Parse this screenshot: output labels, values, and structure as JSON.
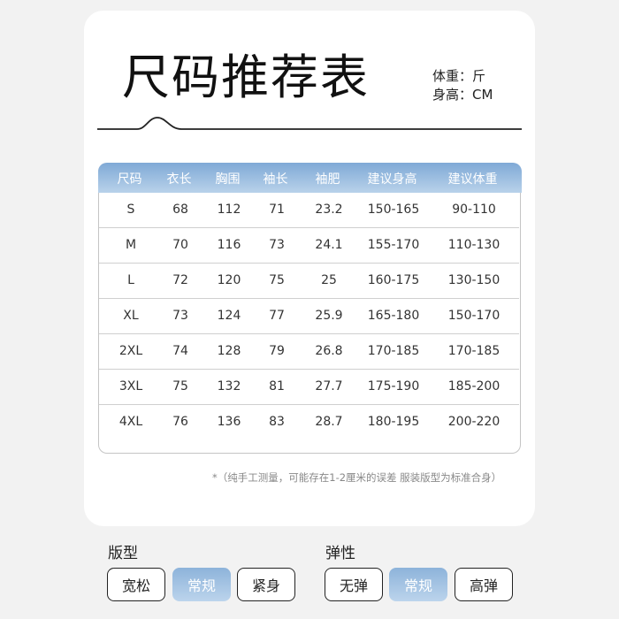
{
  "title": "尺码推荐表",
  "units": {
    "weight": "体重：斤",
    "height": "身高：CM"
  },
  "table": {
    "headers": [
      "尺码",
      "衣长",
      "胸围",
      "袖长",
      "袖肥",
      "建议身高",
      "建议体重"
    ],
    "rows": [
      [
        "S",
        "68",
        "112",
        "71",
        "23.2",
        "150-165",
        "90-110"
      ],
      [
        "M",
        "70",
        "116",
        "73",
        "24.1",
        "155-170",
        "110-130"
      ],
      [
        "L",
        "72",
        "120",
        "75",
        "25",
        "160-175",
        "130-150"
      ],
      [
        "XL",
        "73",
        "124",
        "77",
        "25.9",
        "165-180",
        "150-170"
      ],
      [
        "2XL",
        "74",
        "128",
        "79",
        "26.8",
        "170-185",
        "170-185"
      ],
      [
        "3XL",
        "75",
        "132",
        "81",
        "27.7",
        "175-190",
        "185-200"
      ],
      [
        "4XL",
        "76",
        "136",
        "83",
        "28.7",
        "180-195",
        "200-220"
      ]
    ]
  },
  "note": "*（纯手工测量，可能存在1-2厘米的误差  服装版型为标准合身）",
  "fit": {
    "label": "版型",
    "options": [
      "宽松",
      "常规",
      "紧身"
    ],
    "selected": "常规"
  },
  "elasticity": {
    "label": "弹性",
    "options": [
      "无弹",
      "常规",
      "高弹"
    ],
    "selected": "常规"
  },
  "colors": {
    "accent": "#8db3da"
  }
}
